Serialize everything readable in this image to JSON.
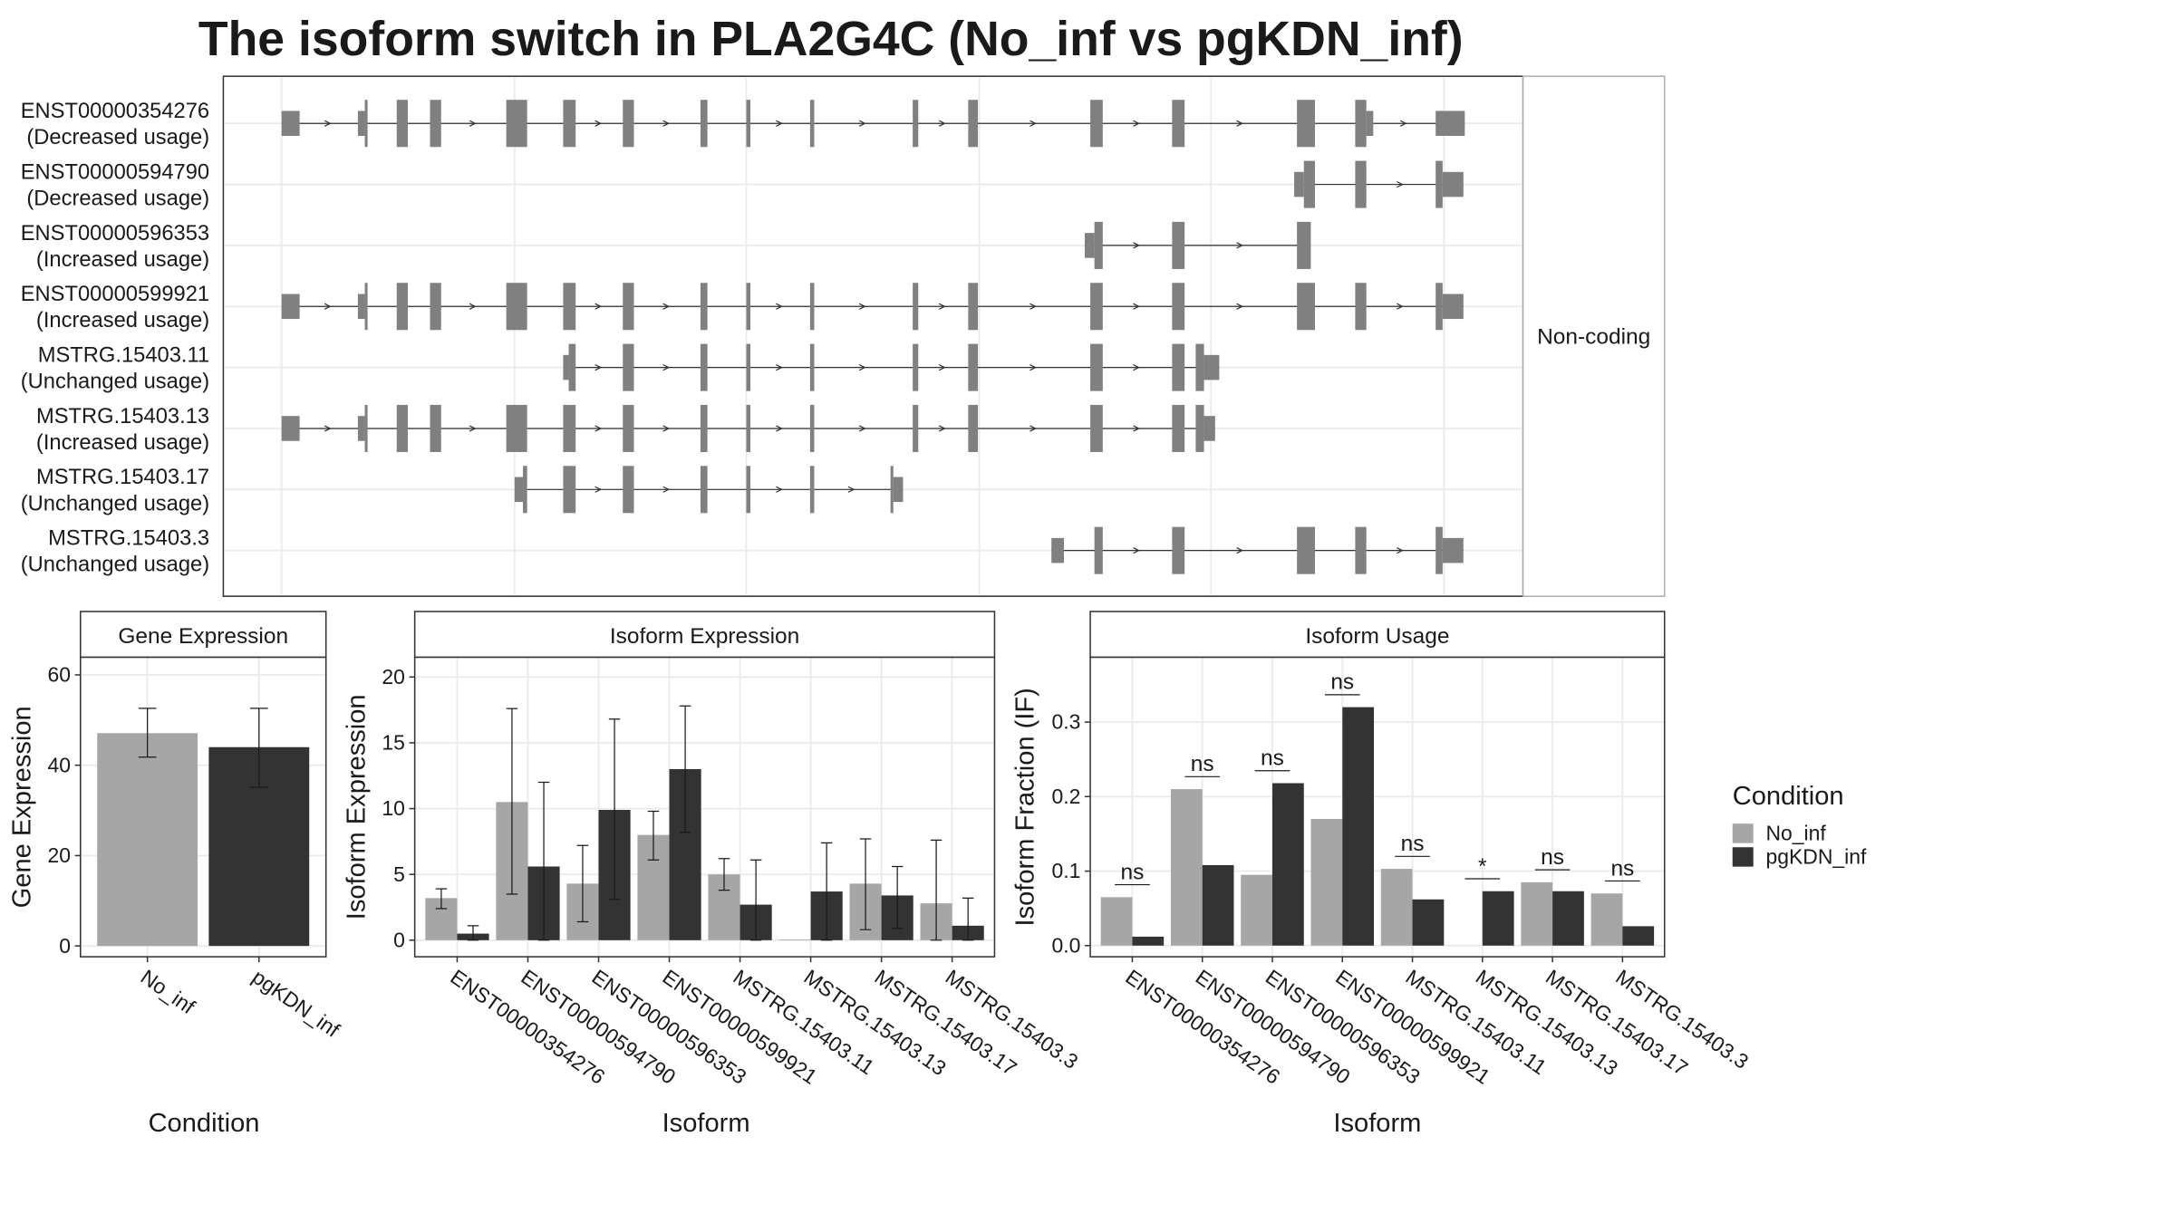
{
  "title": "The isoform switch in PLA2G4C (No_inf vs pgKDN_inf)",
  "transcripts": {
    "names": [
      "ENST00000354276",
      "ENST00000594790",
      "ENST00000596353",
      "ENST00000599921",
      "MSTRG.15403.11",
      "MSTRG.15403.13",
      "MSTRG.15403.17",
      "MSTRG.15403.3"
    ],
    "usage": [
      "(Decreased usage)",
      "(Decreased usage)",
      "(Increased usage)",
      "(Increased usage)",
      "(Unchanged usage)",
      "(Increased usage)",
      "(Unchanged usage)",
      "(Unchanged usage)"
    ],
    "category": "Non-coding"
  },
  "chart_data": [
    {
      "type": "bar",
      "panel_title": "Gene Expression",
      "xlabel": "Condition",
      "ylabel": "Gene Expression",
      "categories": [
        "No_inf",
        "pgKDN_inf"
      ],
      "values": [
        47.1,
        44
      ],
      "error_low": [
        41.8,
        35.1
      ],
      "error_high": [
        52.6,
        52.6
      ],
      "colors": [
        "#a6a6a6",
        "#333333"
      ],
      "ylim": [
        -2.4,
        63.9
      ],
      "yticks": [
        0,
        20,
        40,
        60
      ],
      "grid": true
    },
    {
      "type": "grouped_bar",
      "panel_title": "Isoform Expression",
      "xlabel": "Isoform",
      "ylabel": "Isoform Expression",
      "categories": [
        "ENST00000354276",
        "ENST00000594790",
        "ENST00000596353",
        "ENST00000599921",
        "MSTRG.15403.11",
        "MSTRG.15403.13",
        "MSTRG.15403.17",
        "MSTRG.15403.3"
      ],
      "series": [
        {
          "name": "No_inf",
          "color": "#a6a6a6",
          "values": [
            3.2,
            10.5,
            4.3,
            8,
            5,
            0.05,
            4.3,
            2.8
          ],
          "error_low": [
            2.4,
            3.5,
            1.4,
            6.1,
            3.8,
            null,
            0.8,
            0
          ],
          "error_high": [
            3.9,
            17.6,
            7.2,
            9.8,
            6.2,
            null,
            7.7,
            7.6
          ]
        },
        {
          "name": "pgKDN_inf",
          "color": "#333333",
          "values": [
            0.5,
            5.6,
            9.9,
            13,
            2.7,
            3.7,
            3.4,
            1.1
          ],
          "error_low": [
            0,
            0,
            3.1,
            8.2,
            0,
            0,
            0.9,
            0
          ],
          "error_high": [
            1.1,
            12,
            16.8,
            17.8,
            6.1,
            7.4,
            5.6,
            3.2
          ]
        }
      ],
      "ylim": [
        -1.26,
        21.5
      ],
      "yticks": [
        0,
        5,
        10,
        15,
        20
      ],
      "grid": true
    },
    {
      "type": "grouped_bar",
      "panel_title": "Isoform Usage",
      "xlabel": "Isoform",
      "ylabel": "Isoform Fraction (IF)",
      "legend_title": "Condition",
      "categories": [
        "ENST00000354276",
        "ENST00000594790",
        "ENST00000596353",
        "ENST00000599921",
        "MSTRG.15403.11",
        "MSTRG.15403.13",
        "MSTRG.15403.17",
        "MSTRG.15403.3"
      ],
      "series": [
        {
          "name": "No_inf",
          "color": "#a6a6a6",
          "values": [
            0.065,
            0.21,
            0.095,
            0.17,
            0.103,
            0,
            0.085,
            0.07
          ]
        },
        {
          "name": "pgKDN_inf",
          "color": "#333333",
          "values": [
            0.012,
            0.108,
            0.218,
            0.32,
            0.062,
            0.073,
            0.073,
            0.026
          ]
        }
      ],
      "annotations": [
        "ns",
        "ns",
        "ns",
        "ns",
        "ns",
        "*",
        "ns",
        "ns"
      ],
      "ylim": [
        -0.015,
        0.387
      ],
      "yticks": [
        {
          "value": 0,
          "label": "0.0"
        },
        0.1,
        0.2,
        0.3
      ],
      "grid": true
    }
  ]
}
